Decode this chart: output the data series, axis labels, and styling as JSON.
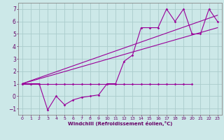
{
  "xlabel": "Windchill (Refroidissement éolien,°C)",
  "background_color": "#cce8e8",
  "grid_color": "#aacccc",
  "line_color": "#990099",
  "spine_color": "#888888",
  "tick_color": "#660066",
  "label_color": "#660066",
  "x_min": -0.5,
  "x_max": 23.5,
  "y_min": -1.5,
  "y_max": 7.5,
  "x_ticks": [
    0,
    1,
    2,
    3,
    4,
    5,
    6,
    7,
    8,
    9,
    10,
    11,
    12,
    13,
    14,
    15,
    16,
    17,
    18,
    19,
    20,
    21,
    22,
    23
  ],
  "y_ticks": [
    -1,
    0,
    1,
    2,
    3,
    4,
    5,
    6,
    7
  ],
  "series_flat_x": [
    0,
    1,
    2,
    3,
    4,
    5,
    6,
    7,
    8,
    9,
    10,
    11,
    12,
    13,
    14,
    15,
    16,
    17,
    18,
    19,
    20
  ],
  "series_flat_y": [
    1.0,
    1.0,
    1.0,
    1.0,
    1.0,
    1.0,
    1.0,
    1.0,
    1.0,
    1.0,
    1.0,
    1.0,
    1.0,
    1.0,
    1.0,
    1.0,
    1.0,
    1.0,
    1.0,
    1.0,
    1.0
  ],
  "series_wavy_x": [
    0,
    1,
    2,
    3,
    4,
    5,
    6,
    7,
    8,
    9,
    10,
    11,
    12,
    13,
    14,
    15,
    16,
    17,
    18,
    19,
    20,
    21,
    22,
    23
  ],
  "series_wavy_y": [
    1.0,
    1.0,
    1.0,
    -1.1,
    0.0,
    -0.7,
    -0.3,
    -0.1,
    0.0,
    0.1,
    1.0,
    1.0,
    2.8,
    3.3,
    5.5,
    5.5,
    5.5,
    7.0,
    6.0,
    7.0,
    5.0,
    5.0,
    7.0,
    6.0
  ],
  "line1_x": [
    0,
    23
  ],
  "line1_y": [
    1.0,
    6.5
  ],
  "line2_x": [
    0,
    23
  ],
  "line2_y": [
    1.0,
    5.5
  ]
}
